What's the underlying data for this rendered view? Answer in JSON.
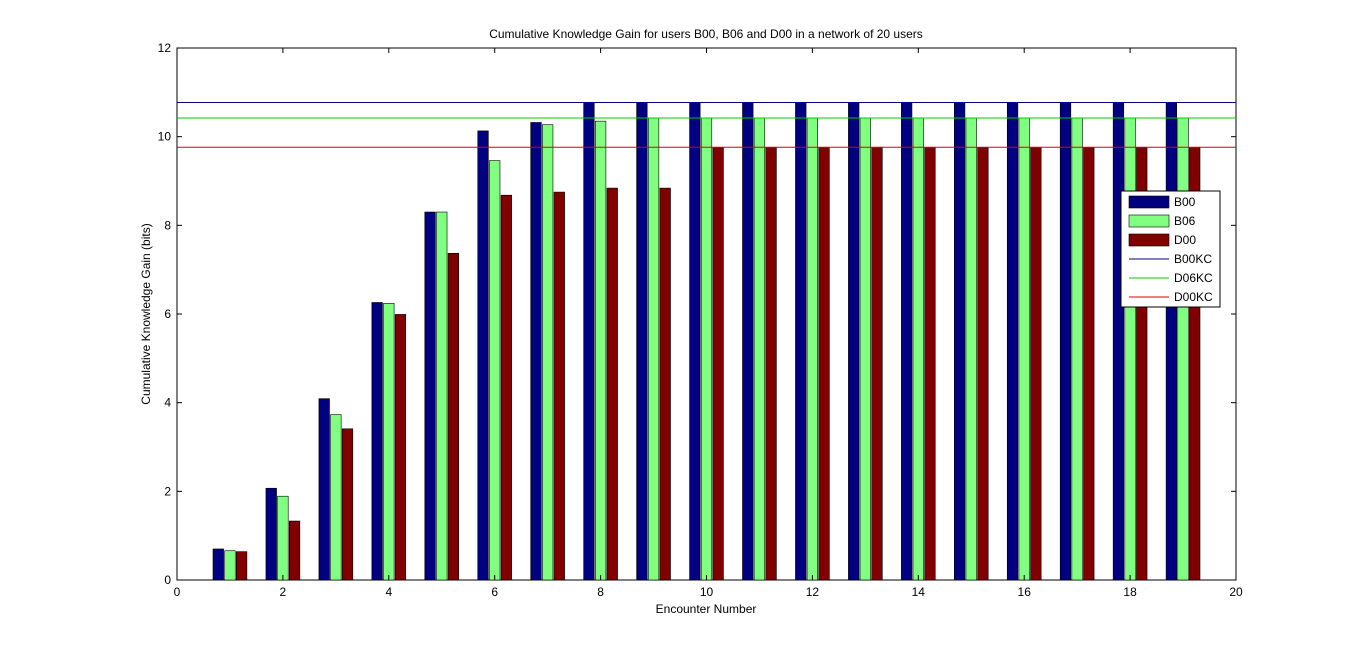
{
  "chart_data": {
    "type": "bar",
    "title": "Cumulative Knowledge Gain for users B00, B06 and D00 in a network of 20 users",
    "xlabel": "Encounter Number",
    "ylabel": "Cumulative Knowledge Gain (bits)",
    "xlim": [
      0,
      20
    ],
    "ylim": [
      0,
      12
    ],
    "xticks": [
      0,
      2,
      4,
      6,
      8,
      10,
      12,
      14,
      16,
      18,
      20
    ],
    "yticks": [
      0,
      2,
      4,
      6,
      8,
      10,
      12
    ],
    "grid": false,
    "legend_position": "right",
    "x": [
      1,
      2,
      3,
      4,
      5,
      6,
      7,
      8,
      9,
      10,
      11,
      12,
      13,
      14,
      15,
      16,
      17,
      18,
      19
    ],
    "series": [
      {
        "name": "B00",
        "color": "#000080",
        "values": [
          0.7,
          2.07,
          4.09,
          6.26,
          8.3,
          10.13,
          10.32,
          10.77,
          10.77,
          10.77,
          10.77,
          10.77,
          10.77,
          10.77,
          10.77,
          10.77,
          10.77,
          10.77,
          10.77
        ]
      },
      {
        "name": "B06",
        "color": "#80ff80",
        "values": [
          0.66,
          1.89,
          3.73,
          6.24,
          8.3,
          9.46,
          10.27,
          10.35,
          10.42,
          10.42,
          10.42,
          10.42,
          10.42,
          10.42,
          10.42,
          10.42,
          10.42,
          10.42,
          10.42
        ]
      },
      {
        "name": "D00",
        "color": "#800000",
        "values": [
          0.64,
          1.33,
          3.41,
          5.99,
          7.37,
          8.68,
          8.75,
          8.84,
          8.84,
          9.76,
          9.76,
          9.76,
          9.76,
          9.76,
          9.76,
          9.76,
          9.76,
          9.76,
          9.76
        ]
      }
    ],
    "reference_lines": [
      {
        "name": "B00KC",
        "value": 10.77,
        "color": "#000080"
      },
      {
        "name": "D06KC",
        "value": 10.42,
        "color": "#00cc00"
      },
      {
        "name": "D00KC",
        "value": 9.76,
        "color": "#dd0000"
      }
    ]
  }
}
